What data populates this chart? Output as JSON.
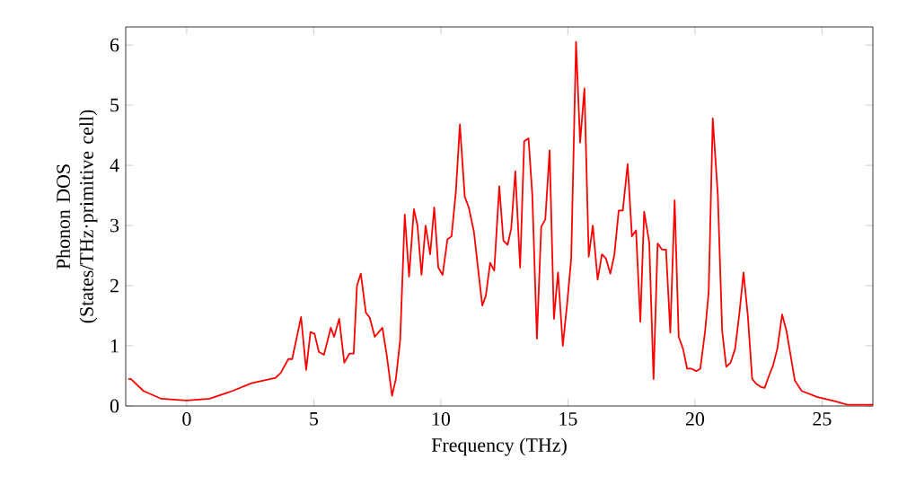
{
  "chart_data": {
    "type": "line",
    "xlabel": "Frequency (THz)",
    "ylabel": "Phonon DOS (States/THz·primitive cell)",
    "xlim": [
      -2.4,
      27
    ],
    "ylim": [
      0,
      6.3
    ],
    "xticks": [
      0,
      5,
      10,
      15,
      20,
      25
    ],
    "yticks": [
      0,
      1,
      2,
      3,
      4,
      5,
      6
    ],
    "marker": "none",
    "line_style": "solid",
    "series": [
      {
        "color": "#ff0000",
        "x": [
          -2.3,
          -2.2,
          -1.7,
          -1.0,
          0,
          0.9,
          1.8,
          2.55,
          3.5,
          3.7,
          4.0,
          4.15,
          4.5,
          4.7,
          4.87,
          5.03,
          5.2,
          5.4,
          5.67,
          5.8,
          6.0,
          6.2,
          6.4,
          6.57,
          6.7,
          6.85,
          7.05,
          7.2,
          7.4,
          7.7,
          7.87,
          8.08,
          8.23,
          8.4,
          8.58,
          8.75,
          8.94,
          9.08,
          9.24,
          9.4,
          9.58,
          9.74,
          9.9,
          10.07,
          10.26,
          10.42,
          10.59,
          10.75,
          10.94,
          11.1,
          11.3,
          11.46,
          11.63,
          11.77,
          11.94,
          12.1,
          12.3,
          12.46,
          12.63,
          12.77,
          12.93,
          13.12,
          13.28,
          13.45,
          13.6,
          13.78,
          13.95,
          14.11,
          14.28,
          14.45,
          14.61,
          14.8,
          14.97,
          15.13,
          15.32,
          15.48,
          15.65,
          15.82,
          15.98,
          16.17,
          16.34,
          16.5,
          16.67,
          16.83,
          17.0,
          17.16,
          17.35,
          17.52,
          17.68,
          17.85,
          18.0,
          18.2,
          18.37,
          18.53,
          18.7,
          18.86,
          19.03,
          19.2,
          19.36,
          19.53,
          19.69,
          19.86,
          20.05,
          20.21,
          20.4,
          20.54,
          20.7,
          20.9,
          21.07,
          21.23,
          21.4,
          21.58,
          21.75,
          21.91,
          22.08,
          22.25,
          22.41,
          22.58,
          22.74,
          22.91,
          23.07,
          23.24,
          23.43,
          23.6,
          23.76,
          23.93,
          24.2,
          24.8,
          25.5,
          26.0,
          27.0
        ],
        "values": [
          0.45,
          0.45,
          0.25,
          0.12,
          0.09,
          0.12,
          0.25,
          0.38,
          0.47,
          0.55,
          0.78,
          0.78,
          1.48,
          0.6,
          1.23,
          1.2,
          0.9,
          0.85,
          1.3,
          1.15,
          1.45,
          0.72,
          0.87,
          0.87,
          2.0,
          2.2,
          1.55,
          1.47,
          1.15,
          1.3,
          0.85,
          0.17,
          0.45,
          1.1,
          3.18,
          2.15,
          3.27,
          3.0,
          2.18,
          3.0,
          2.52,
          3.3,
          2.3,
          2.18,
          2.77,
          2.82,
          3.55,
          4.68,
          3.48,
          3.3,
          2.9,
          2.3,
          1.67,
          1.83,
          2.38,
          2.25,
          3.65,
          2.75,
          2.68,
          2.95,
          3.9,
          2.3,
          4.4,
          4.45,
          3.5,
          1.12,
          2.98,
          3.1,
          4.25,
          1.45,
          2.22,
          1.0,
          1.7,
          2.45,
          6.05,
          4.38,
          5.28,
          2.48,
          3.0,
          2.1,
          2.52,
          2.45,
          2.2,
          2.52,
          3.25,
          3.25,
          4.02,
          2.82,
          2.92,
          1.4,
          3.23,
          2.72,
          0.45,
          2.7,
          2.6,
          2.6,
          1.22,
          3.42,
          1.15,
          0.95,
          0.62,
          0.62,
          0.58,
          0.62,
          1.25,
          1.9,
          4.78,
          3.5,
          1.25,
          0.65,
          0.72,
          0.95,
          1.55,
          2.22,
          1.5,
          0.45,
          0.37,
          0.32,
          0.3,
          0.5,
          0.67,
          0.95,
          1.52,
          1.25,
          0.85,
          0.42,
          0.25,
          0.15,
          0.08,
          0.02,
          0.02
        ]
      }
    ]
  }
}
